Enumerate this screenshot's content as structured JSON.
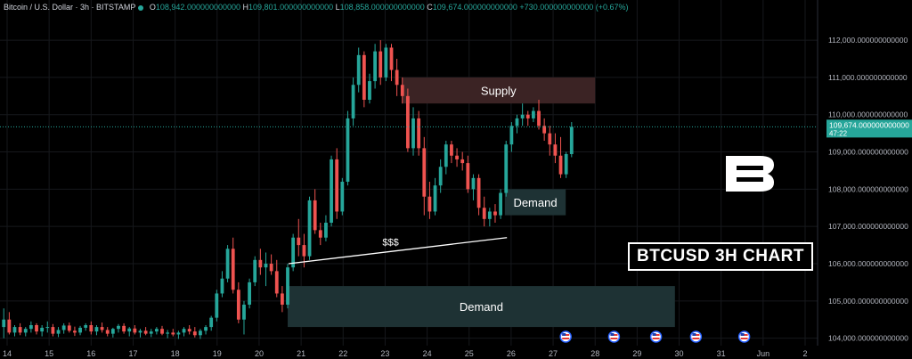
{
  "header": {
    "symbol": "Bitcoin / U.S. Dollar · 3h · BITSTAMP",
    "open_label": "O",
    "open": "108,942.000000000000",
    "high_label": "H",
    "high": "109,801.000000000000",
    "low_label": "L",
    "low": "108,858.000000000000",
    "close_label": "C",
    "close": "109,674.000000000000",
    "change": "+730.000000000000 (+0.67%)"
  },
  "colors": {
    "up": "#26a69a",
    "down": "#ef5350",
    "price_tag": "#26a69a",
    "supply_zone": "#3b2324",
    "demand_zone": "#1e3234"
  },
  "badge_text": "BTCUSD 3H CHART",
  "logo_icon": "b-logo-icon",
  "event_icons": [
    "us-flag-icon",
    "us-flag-icon",
    "us-flag-icon",
    "us-flag-icon",
    "us-flag-icon"
  ],
  "chart_data": {
    "type": "candlestick",
    "title": "",
    "x_tick_labels": [
      "14",
      "15",
      "16",
      "17",
      "18",
      "19",
      "20",
      "21",
      "22",
      "23",
      "24",
      "25",
      "26",
      "27",
      "28",
      "29",
      "30",
      "31",
      "Jun",
      "2"
    ],
    "y_tick_labels": [
      "104,000.000000000000",
      "105,000.000000000000",
      "106,000.000000000000",
      "107,000.000000000000",
      "108,000.000000000000",
      "109,000.000000000000",
      "110,000.000000000000",
      "111,000.000000000000",
      "112,000.000000000000"
    ],
    "y_ticks": [
      104000,
      105000,
      106000,
      107000,
      108000,
      109000,
      110000,
      111000,
      112000
    ],
    "ylim": [
      103800,
      112600
    ],
    "x_day_start": 14,
    "x_day_end": 33,
    "last_price_label": "109,674.000000000000",
    "countdown": "47:22",
    "last_price": 109674,
    "candles": [
      {
        "d": 13.92,
        "o": 104300,
        "h": 104800,
        "l": 104000,
        "c": 104500
      },
      {
        "d": 14.05,
        "o": 104500,
        "h": 104700,
        "l": 104100,
        "c": 104150
      },
      {
        "d": 14.18,
        "o": 104150,
        "h": 104350,
        "l": 104050,
        "c": 104300
      },
      {
        "d": 14.31,
        "o": 104300,
        "h": 104400,
        "l": 104080,
        "c": 104150
      },
      {
        "d": 14.44,
        "o": 104150,
        "h": 104300,
        "l": 104050,
        "c": 104250
      },
      {
        "d": 14.57,
        "o": 104250,
        "h": 104450,
        "l": 104150,
        "c": 104350
      },
      {
        "d": 14.7,
        "o": 104350,
        "h": 104400,
        "l": 104100,
        "c": 104180
      },
      {
        "d": 14.83,
        "o": 104180,
        "h": 104350,
        "l": 104050,
        "c": 104280
      },
      {
        "d": 14.96,
        "o": 104280,
        "h": 104450,
        "l": 104150,
        "c": 104300
      },
      {
        "d": 15.09,
        "o": 104300,
        "h": 104380,
        "l": 104050,
        "c": 104120
      },
      {
        "d": 15.22,
        "o": 104120,
        "h": 104300,
        "l": 104030,
        "c": 104220
      },
      {
        "d": 15.35,
        "o": 104220,
        "h": 104400,
        "l": 104120,
        "c": 104340
      },
      {
        "d": 15.48,
        "o": 104340,
        "h": 104420,
        "l": 104150,
        "c": 104200
      },
      {
        "d": 15.61,
        "o": 104200,
        "h": 104310,
        "l": 104060,
        "c": 104150
      },
      {
        "d": 15.74,
        "o": 104150,
        "h": 104330,
        "l": 104080,
        "c": 104280
      },
      {
        "d": 15.87,
        "o": 104280,
        "h": 104400,
        "l": 104200,
        "c": 104350
      },
      {
        "d": 16.0,
        "o": 104350,
        "h": 104450,
        "l": 104100,
        "c": 104180
      },
      {
        "d": 16.13,
        "o": 104180,
        "h": 104350,
        "l": 104080,
        "c": 104300
      },
      {
        "d": 16.26,
        "o": 104300,
        "h": 104420,
        "l": 104150,
        "c": 104220
      },
      {
        "d": 16.39,
        "o": 104220,
        "h": 104300,
        "l": 104050,
        "c": 104120
      },
      {
        "d": 16.52,
        "o": 104120,
        "h": 104280,
        "l": 104020,
        "c": 104250
      },
      {
        "d": 16.65,
        "o": 104250,
        "h": 104380,
        "l": 104150,
        "c": 104330
      },
      {
        "d": 16.78,
        "o": 104330,
        "h": 104400,
        "l": 104120,
        "c": 104180
      },
      {
        "d": 16.91,
        "o": 104180,
        "h": 104300,
        "l": 104050,
        "c": 104260
      },
      {
        "d": 17.04,
        "o": 104260,
        "h": 104350,
        "l": 104100,
        "c": 104150
      },
      {
        "d": 17.17,
        "o": 104150,
        "h": 104250,
        "l": 104020,
        "c": 104200
      },
      {
        "d": 17.3,
        "o": 104200,
        "h": 104300,
        "l": 104080,
        "c": 104120
      },
      {
        "d": 17.43,
        "o": 104120,
        "h": 104250,
        "l": 104030,
        "c": 104180
      },
      {
        "d": 17.56,
        "o": 104180,
        "h": 104300,
        "l": 104100,
        "c": 104250
      },
      {
        "d": 17.69,
        "o": 104250,
        "h": 104330,
        "l": 104080,
        "c": 104120
      },
      {
        "d": 17.82,
        "o": 104120,
        "h": 104220,
        "l": 104000,
        "c": 104150
      },
      {
        "d": 17.95,
        "o": 104150,
        "h": 104250,
        "l": 104050,
        "c": 104100
      },
      {
        "d": 18.08,
        "o": 104100,
        "h": 104200,
        "l": 103980,
        "c": 104150
      },
      {
        "d": 18.21,
        "o": 104150,
        "h": 104300,
        "l": 104050,
        "c": 104250
      },
      {
        "d": 18.34,
        "o": 104250,
        "h": 104350,
        "l": 104100,
        "c": 104180
      },
      {
        "d": 18.47,
        "o": 104180,
        "h": 104300,
        "l": 104020,
        "c": 104080
      },
      {
        "d": 18.6,
        "o": 104080,
        "h": 104250,
        "l": 103980,
        "c": 104200
      },
      {
        "d": 18.73,
        "o": 104200,
        "h": 104350,
        "l": 104100,
        "c": 104300
      },
      {
        "d": 18.86,
        "o": 104300,
        "h": 104600,
        "l": 104200,
        "c": 104550
      },
      {
        "d": 18.99,
        "o": 104550,
        "h": 105300,
        "l": 104450,
        "c": 105200
      },
      {
        "d": 19.12,
        "o": 105200,
        "h": 105800,
        "l": 105100,
        "c": 105600
      },
      {
        "d": 19.25,
        "o": 105600,
        "h": 106500,
        "l": 105500,
        "c": 106400
      },
      {
        "d": 19.38,
        "o": 106400,
        "h": 106700,
        "l": 105200,
        "c": 105300
      },
      {
        "d": 19.51,
        "o": 105300,
        "h": 105500,
        "l": 104400,
        "c": 104500
      },
      {
        "d": 19.64,
        "o": 104500,
        "h": 105000,
        "l": 104100,
        "c": 104900
      },
      {
        "d": 19.77,
        "o": 104900,
        "h": 105600,
        "l": 104800,
        "c": 105500
      },
      {
        "d": 19.9,
        "o": 105500,
        "h": 106200,
        "l": 105400,
        "c": 106100
      },
      {
        "d": 20.03,
        "o": 106100,
        "h": 106400,
        "l": 105700,
        "c": 105900
      },
      {
        "d": 20.16,
        "o": 105900,
        "h": 106300,
        "l": 105400,
        "c": 106000
      },
      {
        "d": 20.29,
        "o": 106000,
        "h": 106250,
        "l": 105700,
        "c": 105800
      },
      {
        "d": 20.42,
        "o": 105800,
        "h": 106100,
        "l": 105100,
        "c": 105200
      },
      {
        "d": 20.55,
        "o": 105200,
        "h": 105400,
        "l": 104700,
        "c": 104900
      },
      {
        "d": 20.68,
        "o": 104900,
        "h": 106000,
        "l": 104800,
        "c": 105900
      },
      {
        "d": 20.81,
        "o": 105900,
        "h": 106800,
        "l": 105800,
        "c": 106700
      },
      {
        "d": 20.94,
        "o": 106700,
        "h": 107200,
        "l": 106200,
        "c": 106500
      },
      {
        "d": 21.07,
        "o": 106500,
        "h": 106800,
        "l": 105900,
        "c": 106200
      },
      {
        "d": 21.2,
        "o": 106200,
        "h": 107800,
        "l": 106100,
        "c": 107700
      },
      {
        "d": 21.33,
        "o": 107700,
        "h": 108000,
        "l": 106800,
        "c": 106900
      },
      {
        "d": 21.46,
        "o": 106900,
        "h": 107100,
        "l": 106500,
        "c": 106700
      },
      {
        "d": 21.59,
        "o": 106700,
        "h": 107300,
        "l": 106600,
        "c": 107100
      },
      {
        "d": 21.72,
        "o": 107100,
        "h": 108900,
        "l": 107000,
        "c": 108800
      },
      {
        "d": 21.85,
        "o": 108800,
        "h": 109100,
        "l": 107200,
        "c": 107400
      },
      {
        "d": 21.98,
        "o": 107400,
        "h": 108300,
        "l": 107300,
        "c": 108200
      },
      {
        "d": 22.11,
        "o": 108200,
        "h": 110100,
        "l": 108100,
        "c": 109900
      },
      {
        "d": 22.24,
        "o": 109900,
        "h": 111000,
        "l": 109700,
        "c": 110800
      },
      {
        "d": 22.37,
        "o": 110800,
        "h": 111800,
        "l": 110600,
        "c": 111600
      },
      {
        "d": 22.5,
        "o": 111600,
        "h": 111700,
        "l": 110200,
        "c": 110400
      },
      {
        "d": 22.63,
        "o": 110400,
        "h": 111100,
        "l": 110300,
        "c": 110900
      },
      {
        "d": 22.76,
        "o": 110900,
        "h": 111900,
        "l": 110700,
        "c": 111700
      },
      {
        "d": 22.89,
        "o": 111700,
        "h": 112000,
        "l": 110800,
        "c": 111000
      },
      {
        "d": 23.02,
        "o": 111000,
        "h": 111900,
        "l": 110900,
        "c": 111800
      },
      {
        "d": 23.15,
        "o": 111800,
        "h": 111900,
        "l": 110900,
        "c": 111200
      },
      {
        "d": 23.28,
        "o": 111200,
        "h": 111500,
        "l": 110500,
        "c": 110800
      },
      {
        "d": 23.41,
        "o": 110800,
        "h": 111000,
        "l": 110300,
        "c": 110500
      },
      {
        "d": 23.54,
        "o": 110500,
        "h": 110700,
        "l": 109000,
        "c": 109100
      },
      {
        "d": 23.67,
        "o": 109100,
        "h": 110200,
        "l": 108900,
        "c": 109900
      },
      {
        "d": 23.8,
        "o": 109900,
        "h": 110100,
        "l": 108900,
        "c": 109100
      },
      {
        "d": 23.93,
        "o": 109100,
        "h": 109400,
        "l": 107300,
        "c": 107800
      },
      {
        "d": 24.06,
        "o": 107800,
        "h": 108200,
        "l": 107200,
        "c": 107400
      },
      {
        "d": 24.19,
        "o": 107400,
        "h": 108300,
        "l": 107300,
        "c": 108100
      },
      {
        "d": 24.32,
        "o": 108100,
        "h": 108800,
        "l": 107900,
        "c": 108600
      },
      {
        "d": 24.45,
        "o": 108600,
        "h": 109300,
        "l": 108400,
        "c": 109200
      },
      {
        "d": 24.58,
        "o": 109200,
        "h": 109300,
        "l": 108700,
        "c": 108900
      },
      {
        "d": 24.71,
        "o": 108900,
        "h": 109100,
        "l": 108600,
        "c": 108800
      },
      {
        "d": 24.84,
        "o": 108800,
        "h": 109000,
        "l": 108500,
        "c": 108700
      },
      {
        "d": 24.97,
        "o": 108700,
        "h": 108900,
        "l": 107900,
        "c": 108000
      },
      {
        "d": 25.1,
        "o": 108000,
        "h": 108400,
        "l": 107700,
        "c": 108300
      },
      {
        "d": 25.23,
        "o": 108300,
        "h": 108400,
        "l": 107300,
        "c": 107500
      },
      {
        "d": 25.36,
        "o": 107500,
        "h": 107800,
        "l": 107000,
        "c": 107200
      },
      {
        "d": 25.49,
        "o": 107200,
        "h": 107500,
        "l": 107000,
        "c": 107400
      },
      {
        "d": 25.62,
        "o": 107400,
        "h": 107600,
        "l": 107100,
        "c": 107300
      },
      {
        "d": 25.75,
        "o": 107300,
        "h": 108000,
        "l": 107200,
        "c": 107900
      },
      {
        "d": 25.88,
        "o": 107900,
        "h": 109300,
        "l": 107800,
        "c": 109200
      },
      {
        "d": 26.01,
        "o": 109200,
        "h": 109800,
        "l": 109000,
        "c": 109700
      },
      {
        "d": 26.14,
        "o": 109700,
        "h": 110000,
        "l": 109500,
        "c": 109900
      },
      {
        "d": 26.27,
        "o": 109900,
        "h": 110300,
        "l": 109700,
        "c": 110000
      },
      {
        "d": 26.4,
        "o": 110000,
        "h": 110100,
        "l": 109700,
        "c": 109900
      },
      {
        "d": 26.53,
        "o": 109900,
        "h": 110200,
        "l": 109800,
        "c": 110100
      },
      {
        "d": 26.66,
        "o": 110100,
        "h": 110400,
        "l": 109600,
        "c": 109700
      },
      {
        "d": 26.79,
        "o": 109700,
        "h": 109900,
        "l": 109300,
        "c": 109500
      },
      {
        "d": 26.92,
        "o": 109500,
        "h": 109700,
        "l": 108900,
        "c": 109200
      },
      {
        "d": 27.05,
        "o": 109200,
        "h": 109500,
        "l": 108700,
        "c": 108900
      },
      {
        "d": 27.18,
        "o": 108900,
        "h": 109400,
        "l": 108300,
        "c": 108400
      },
      {
        "d": 27.31,
        "o": 108400,
        "h": 109000,
        "l": 108300,
        "c": 108942
      },
      {
        "d": 27.44,
        "o": 108942,
        "h": 109801,
        "l": 108858,
        "c": 109674
      }
    ],
    "zones": [
      {
        "label": "Supply",
        "kind": "supply",
        "x0": 23.4,
        "x1": 28.0,
        "y0": 110300,
        "y1": 111000
      },
      {
        "label": "Demand",
        "kind": "demand",
        "x0": 25.85,
        "x1": 27.3,
        "y0": 107300,
        "y1": 108000
      },
      {
        "label": "Demand",
        "kind": "demand",
        "x0": 20.68,
        "x1": 29.9,
        "y0": 104300,
        "y1": 105400
      }
    ],
    "trendline": {
      "label": "$$$",
      "x0": 20.7,
      "y0": 106000,
      "x1": 25.9,
      "y1": 106700
    },
    "events": [
      27.3,
      28.45,
      29.45,
      30.4,
      31.55
    ]
  }
}
